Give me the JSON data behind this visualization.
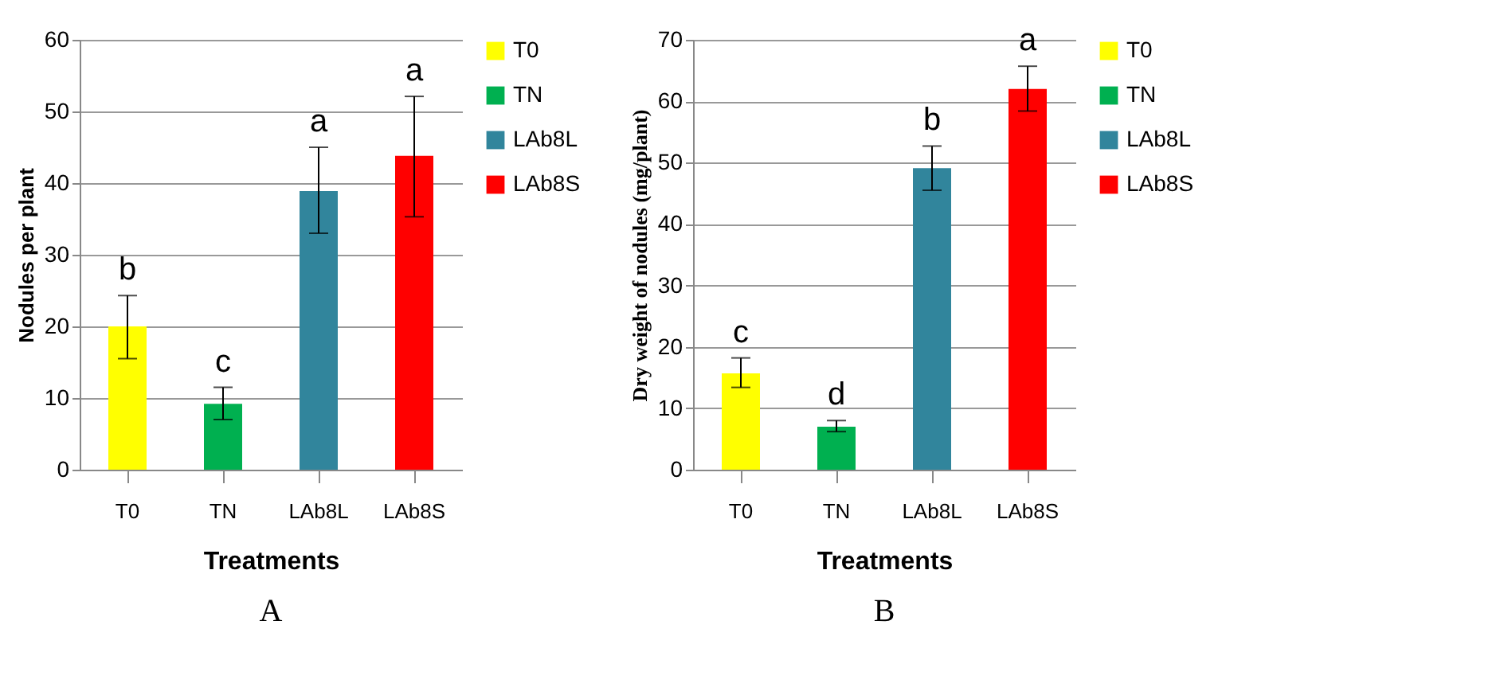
{
  "chart_data": [
    {
      "type": "bar",
      "categories": [
        "T0",
        "TN",
        "LAb8L",
        "LAb8S"
      ],
      "series": [
        {
          "name": "T0",
          "color": "#ffff00",
          "values": [
            20.0,
            null,
            null,
            null
          ],
          "errors": [
            [
              15.5,
              24.3
            ],
            null,
            null,
            null
          ]
        },
        {
          "name": "TN",
          "color": "#00b050",
          "values": [
            null,
            9.2,
            null,
            null
          ],
          "errors": [
            null,
            [
              7.0,
              11.5
            ],
            null,
            null
          ]
        },
        {
          "name": "LAb8L",
          "color": "#31859c",
          "values": [
            null,
            null,
            38.9,
            null
          ],
          "errors": [
            null,
            null,
            [
              33.0,
              45.0
            ],
            null
          ]
        },
        {
          "name": "LAb8S",
          "color": "#ff0000",
          "values": [
            null,
            null,
            null,
            43.8
          ],
          "errors": [
            null,
            null,
            null,
            [
              35.3,
              52.1
            ]
          ]
        }
      ],
      "xlabel": "Treatments",
      "ylabel": "Nodules per plant",
      "ylim": [
        0,
        60
      ],
      "yticks": [
        0,
        10,
        20,
        30,
        40,
        50,
        60
      ],
      "grid": "y",
      "legend": "right",
      "annotations": [
        "b",
        "c",
        "a",
        "a",
        "A"
      ]
    },
    {
      "type": "bar",
      "categories": [
        "T0",
        "TN",
        "LAb8L",
        "LAb8S"
      ],
      "series": [
        {
          "name": "T0",
          "color": "#ffff00",
          "values": [
            15.7,
            null,
            null,
            null
          ],
          "errors": [
            [
              13.4,
              18.2
            ],
            null,
            null,
            null
          ]
        },
        {
          "name": "TN",
          "color": "#00b050",
          "values": [
            null,
            7.0,
            null,
            null
          ],
          "errors": [
            null,
            [
              6.2,
              8.0
            ],
            null,
            null
          ]
        },
        {
          "name": "LAb8L",
          "color": "#31859c",
          "values": [
            null,
            null,
            49.1,
            null
          ],
          "errors": [
            null,
            null,
            [
              45.5,
              52.7
            ],
            null
          ]
        },
        {
          "name": "LAb8S",
          "color": "#ff0000",
          "values": [
            null,
            null,
            null,
            62.0
          ],
          "errors": [
            null,
            null,
            null,
            [
              58.4,
              65.7
            ]
          ]
        }
      ],
      "xlabel": "Treatments",
      "ylabel": "Dry  weight of nodules (mg/plant)",
      "ylim": [
        0,
        70
      ],
      "yticks": [
        0,
        10,
        20,
        30,
        40,
        50,
        60,
        70
      ],
      "grid": "y",
      "legend": "right",
      "annotations": [
        "c",
        "d",
        "b",
        "a",
        "B"
      ]
    }
  ]
}
